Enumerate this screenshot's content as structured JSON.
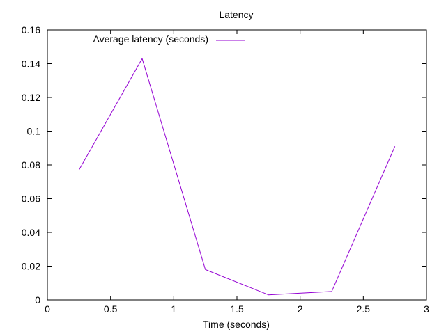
{
  "chart_data": {
    "type": "line",
    "title": "Latency",
    "xlabel": "Time (seconds)",
    "ylabel": "",
    "xlim": [
      0,
      3
    ],
    "ylim": [
      0,
      0.16
    ],
    "xticks": [
      "0",
      "0.5",
      "1",
      "1.5",
      "2",
      "2.5",
      "3"
    ],
    "yticks": [
      "0",
      "0.02",
      "0.04",
      "0.06",
      "0.08",
      "0.1",
      "0.12",
      "0.14",
      "0.16"
    ],
    "grid": false,
    "legend_position": "top-left inside",
    "series": [
      {
        "name": "Average latency (seconds)",
        "color": "#9400d3",
        "x": [
          0.25,
          0.75,
          1.25,
          1.75,
          2.25,
          2.75
        ],
        "values": [
          0.077,
          0.143,
          0.018,
          0.003,
          0.005,
          0.091
        ]
      }
    ]
  }
}
